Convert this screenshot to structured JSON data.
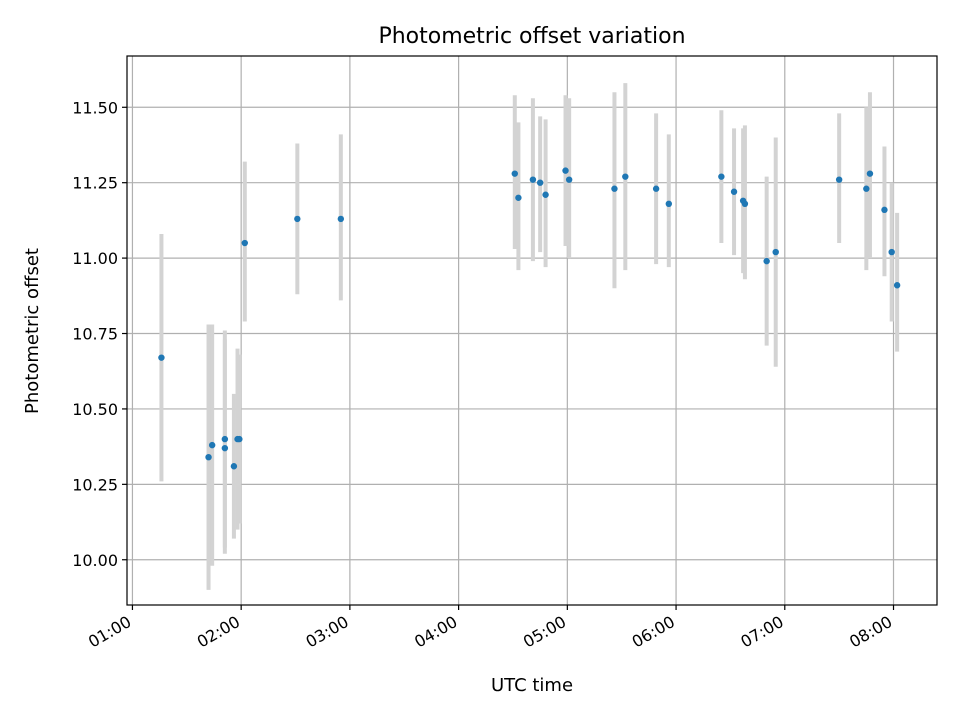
{
  "chart_data": {
    "type": "scatter",
    "title": "Photometric offset variation",
    "xlabel": "UTC time",
    "ylabel": "Photometric offset",
    "grid": true,
    "x_ticks": [
      "01:00",
      "02:00",
      "03:00",
      "04:00",
      "05:00",
      "06:00",
      "07:00",
      "08:00"
    ],
    "y_ticks": [
      "10.00",
      "10.25",
      "10.50",
      "10.75",
      "11.00",
      "11.25",
      "11.50"
    ],
    "xlim": [
      "00:57",
      "08:24"
    ],
    "ylim": [
      9.85,
      11.67
    ],
    "colors": {
      "point": "#1f77b4",
      "errorbar": "#d3d3d3"
    },
    "series": [
      {
        "points": [
          {
            "x": "01:16",
            "y": 10.67,
            "ylo": 10.26,
            "yhi": 11.08
          },
          {
            "x": "01:42",
            "y": 10.34,
            "ylo": 9.9,
            "yhi": 10.78
          },
          {
            "x": "01:44",
            "y": 10.38,
            "ylo": 9.98,
            "yhi": 10.78
          },
          {
            "x": "01:51",
            "y": 10.4,
            "ylo": 10.04,
            "yhi": 10.76
          },
          {
            "x": "01:51",
            "y": 10.37,
            "ylo": 10.02,
            "yhi": 10.73
          },
          {
            "x": "01:56",
            "y": 10.31,
            "ylo": 10.07,
            "yhi": 10.55
          },
          {
            "x": "01:58",
            "y": 10.4,
            "ylo": 10.1,
            "yhi": 10.7
          },
          {
            "x": "01:59",
            "y": 10.4,
            "ylo": 10.12,
            "yhi": 10.68
          },
          {
            "x": "02:02",
            "y": 11.05,
            "ylo": 10.79,
            "yhi": 11.32
          },
          {
            "x": "02:31",
            "y": 11.13,
            "ylo": 10.88,
            "yhi": 11.38
          },
          {
            "x": "02:55",
            "y": 11.13,
            "ylo": 10.86,
            "yhi": 11.41
          },
          {
            "x": "04:31",
            "y": 11.28,
            "ylo": 11.03,
            "yhi": 11.54
          },
          {
            "x": "04:33",
            "y": 11.2,
            "ylo": 10.96,
            "yhi": 11.45
          },
          {
            "x": "04:41",
            "y": 11.26,
            "ylo": 10.99,
            "yhi": 11.53
          },
          {
            "x": "04:45",
            "y": 11.25,
            "ylo": 11.02,
            "yhi": 11.47
          },
          {
            "x": "04:48",
            "y": 11.21,
            "ylo": 10.97,
            "yhi": 11.46
          },
          {
            "x": "04:59",
            "y": 11.29,
            "ylo": 11.04,
            "yhi": 11.54
          },
          {
            "x": "05:01",
            "y": 11.26,
            "ylo": 11.0,
            "yhi": 11.53
          },
          {
            "x": "05:26",
            "y": 11.23,
            "ylo": 10.9,
            "yhi": 11.55
          },
          {
            "x": "05:32",
            "y": 11.27,
            "ylo": 10.96,
            "yhi": 11.58
          },
          {
            "x": "05:49",
            "y": 11.23,
            "ylo": 10.98,
            "yhi": 11.48
          },
          {
            "x": "05:56",
            "y": 11.18,
            "ylo": 10.97,
            "yhi": 11.41
          },
          {
            "x": "06:25",
            "y": 11.27,
            "ylo": 11.05,
            "yhi": 11.49
          },
          {
            "x": "06:32",
            "y": 11.22,
            "ylo": 11.01,
            "yhi": 11.43
          },
          {
            "x": "06:37",
            "y": 11.19,
            "ylo": 10.95,
            "yhi": 11.43
          },
          {
            "x": "06:38",
            "y": 11.18,
            "ylo": 10.93,
            "yhi": 11.44
          },
          {
            "x": "06:50",
            "y": 10.99,
            "ylo": 10.71,
            "yhi": 11.27
          },
          {
            "x": "06:55",
            "y": 11.02,
            "ylo": 10.64,
            "yhi": 11.4
          },
          {
            "x": "07:30",
            "y": 11.26,
            "ylo": 11.05,
            "yhi": 11.48
          },
          {
            "x": "07:45",
            "y": 11.23,
            "ylo": 10.96,
            "yhi": 11.5
          },
          {
            "x": "07:47",
            "y": 11.28,
            "ylo": 11.0,
            "yhi": 11.55
          },
          {
            "x": "07:55",
            "y": 11.16,
            "ylo": 10.94,
            "yhi": 11.37
          },
          {
            "x": "07:59",
            "y": 11.02,
            "ylo": 10.79,
            "yhi": 11.25
          },
          {
            "x": "08:02",
            "y": 10.91,
            "ylo": 10.69,
            "yhi": 11.15
          }
        ]
      }
    ]
  }
}
